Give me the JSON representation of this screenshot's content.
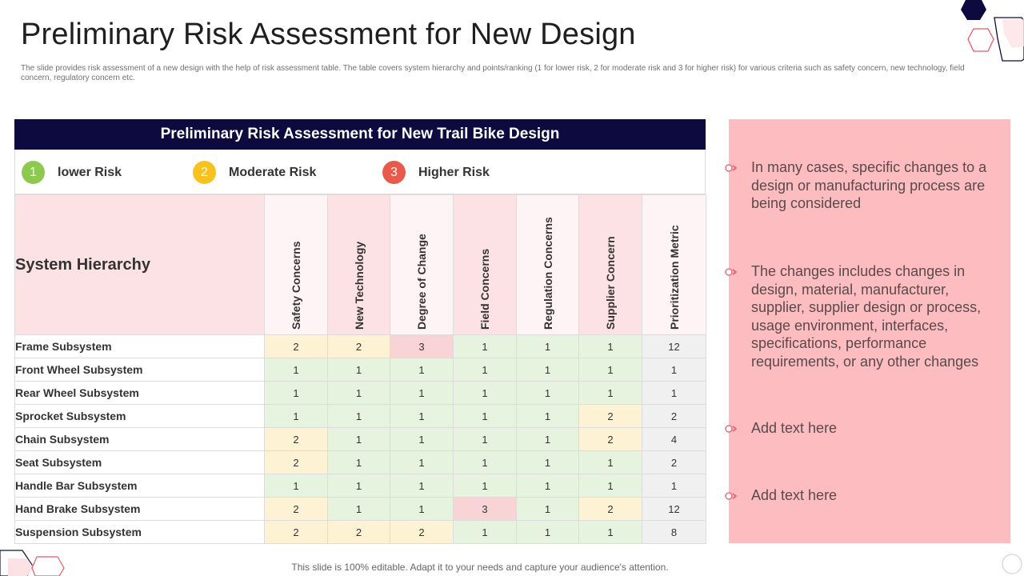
{
  "title": "Preliminary Risk Assessment for New Design",
  "subtitle": "The slide provides risk assessment of a new design with the help of risk assessment table. The table covers system hierarchy and points/ranking (1 for lower risk, 2 for moderate risk and 3 for higher risk) for various criteria such as safety concern, new technology, field concern, regulatory concern etc.",
  "table": {
    "header": "Preliminary Risk Assessment for New Trail Bike Design",
    "legend": [
      {
        "number": "1",
        "label": "lower Risk",
        "color": "#8dc94f"
      },
      {
        "number": "2",
        "label": "Moderate Risk",
        "color": "#f7c21c"
      },
      {
        "number": "3",
        "label": "Higher Risk",
        "color": "#e85a4c"
      }
    ],
    "row_header": "System Hierarchy",
    "columns": [
      "Safety Concerns",
      "New Technology",
      "Degree of Change",
      "Field Concerns",
      "Regulation Concerns",
      "Supplier Concern",
      "Prioritization Metric"
    ],
    "rows": [
      {
        "name": "Frame Subsystem",
        "values": [
          "2",
          "2",
          "3",
          "1",
          "1",
          "1",
          "12"
        ]
      },
      {
        "name": "Front Wheel Subsystem",
        "values": [
          "1",
          "1",
          "1",
          "1",
          "1",
          "1",
          "1"
        ]
      },
      {
        "name": "Rear Wheel Subsystem",
        "values": [
          "1",
          "1",
          "1",
          "1",
          "1",
          "1",
          "1"
        ]
      },
      {
        "name": "Sprocket Subsystem",
        "values": [
          "1",
          "1",
          "1",
          "1",
          "1",
          "2",
          "2"
        ]
      },
      {
        "name": "Chain Subsystem",
        "values": [
          "2",
          "1",
          "1",
          "1",
          "1",
          "2",
          "4"
        ]
      },
      {
        "name": "Seat Subsystem",
        "values": [
          "2",
          "1",
          "1",
          "1",
          "1",
          "1",
          "2"
        ]
      },
      {
        "name": "Handle Bar Subsystem",
        "values": [
          "1",
          "1",
          "1",
          "1",
          "1",
          "1",
          "1"
        ]
      },
      {
        "name": "Hand Brake Subsystem",
        "values": [
          "2",
          "1",
          "1",
          "3",
          "1",
          "2",
          "12"
        ]
      },
      {
        "name": "Suspension Subsystem",
        "values": [
          "2",
          "2",
          "2",
          "1",
          "1",
          "1",
          "8"
        ]
      }
    ]
  },
  "panel": {
    "bullets": [
      "In many cases, specific changes to a design or manufacturing process are being considered",
      "The changes includes changes in design, material, manufacturer, supplier, supplier design or process, usage environment, interfaces, specifications, performance requirements, or any other changes",
      "Add text here",
      "Add text here"
    ],
    "bullet_icon": "circle-arrow-icon"
  },
  "footer": "This slide is 100% editable. Adapt it to your needs and capture your audience's attention.",
  "colors": {
    "header_bg": "#0c0a3e",
    "panel_bg": "#fcbcc0",
    "low": "#e6f3de",
    "moderate": "#fdf2d3",
    "high": "#f9d4d6",
    "metric": "#f0f0f0"
  }
}
